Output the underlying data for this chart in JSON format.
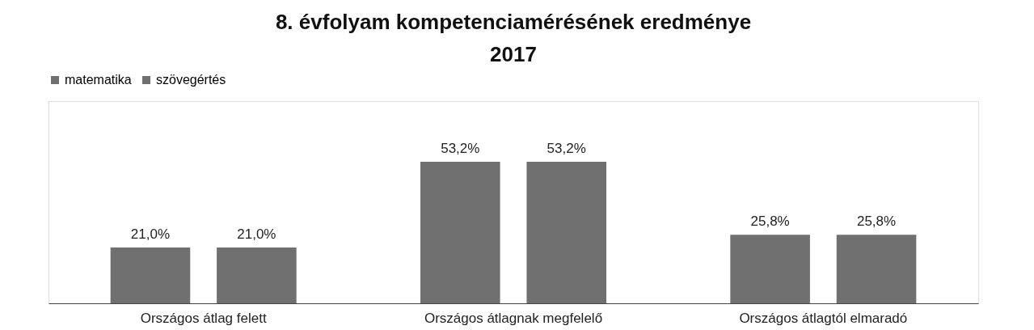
{
  "chart_data": {
    "type": "bar",
    "title": "8. évfolyam kompetenciamérésének eredménye\n2017",
    "categories": [
      "Országos átlag felett",
      "Országos átlagnak megfelelő",
      "Országos átlagtól elmaradó"
    ],
    "series": [
      {
        "name": "matematika",
        "color": "#707070",
        "values": [
          21.0,
          53.2,
          25.8
        ],
        "value_labels": [
          "21,0%",
          "53,2%",
          "25,8%"
        ]
      },
      {
        "name": "szövegértés",
        "color": "#707070",
        "values": [
          21.0,
          53.2,
          25.8
        ],
        "value_labels": [
          "21,0%",
          "53,2%",
          "25,8%"
        ]
      }
    ],
    "legend": "top",
    "grid": false
  }
}
